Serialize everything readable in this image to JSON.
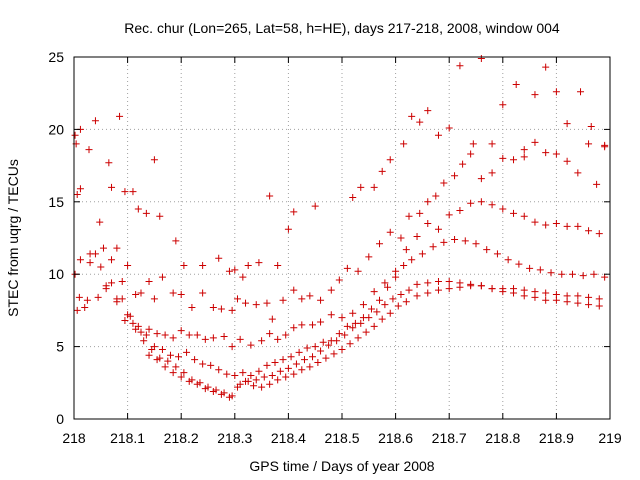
{
  "chart_data": {
    "type": "scatter",
    "title": "Rec. chur (Lon=265, Lat=58, h=HE), days 217-218, 2008, window 004",
    "xlabel": "GPS time / Days of year 2008",
    "ylabel": "STEC from uqrg / TECUs",
    "xlim": [
      218,
      219
    ],
    "ylim": [
      0,
      25
    ],
    "x_ticks": [
      "218",
      "218.1",
      "218.2",
      "218.3",
      "218.4",
      "218.5",
      "218.6",
      "218.7",
      "218.8",
      "218.9",
      "219"
    ],
    "y_ticks": [
      "0",
      "5",
      "10",
      "15",
      "20",
      "25"
    ],
    "grid": true,
    "marker": "plus",
    "color": "#cc0000",
    "points_x": [
      218.002,
      218.004,
      218.006,
      218.012,
      218.012,
      218.028,
      218.04,
      218.048,
      218.065,
      218.07,
      218.085,
      218.095,
      218.11,
      218.12,
      218.135,
      218.15,
      218.16,
      218.19,
      218.205,
      218.24,
      218.27,
      218.29,
      218.3,
      218.315,
      218.325,
      218.345,
      218.365,
      218.38,
      218.4,
      218.41,
      218.45,
      218.52,
      218.535,
      218.56,
      218.575,
      218.59,
      218.615,
      218.63,
      218.645,
      218.66,
      218.68,
      218.7,
      218.72,
      218.745,
      218.76,
      218.78,
      218.8,
      218.825,
      218.84,
      218.86,
      218.88,
      218.9,
      218.92,
      218.945,
      218.965,
      218.99,
      218.002,
      218.006,
      218.012,
      218.02,
      218.03,
      218.04,
      218.055,
      218.07,
      218.08,
      218.09,
      218.1,
      218.115,
      218.125,
      218.14,
      218.15,
      218.165,
      218.185,
      218.2,
      218.22,
      218.24,
      218.26,
      218.275,
      218.295,
      218.305,
      218.32,
      218.34,
      218.36,
      218.37,
      218.39,
      218.41,
      218.425,
      218.44,
      218.46,
      218.48,
      218.495,
      218.51,
      218.53,
      218.55,
      218.57,
      218.59,
      218.61,
      218.625,
      218.645,
      218.66,
      218.675,
      218.69,
      218.71,
      218.725,
      218.74,
      218.76,
      218.78,
      218.8,
      218.82,
      218.84,
      218.86,
      218.88,
      218.9,
      218.92,
      218.94,
      218.96,
      218.975,
      218.99,
      218.01,
      218.025,
      218.045,
      218.06,
      218.08,
      218.095,
      218.11,
      218.125,
      218.14,
      218.155,
      218.17,
      218.185,
      218.2,
      218.215,
      218.23,
      218.245,
      218.26,
      218.28,
      218.295,
      218.31,
      218.33,
      218.35,
      218.365,
      218.38,
      218.395,
      218.41,
      218.425,
      218.445,
      218.46,
      218.48,
      218.5,
      218.52,
      218.54,
      218.56,
      218.58,
      218.6,
      218.62,
      218.64,
      218.66,
      218.68,
      218.7,
      218.72,
      218.74,
      218.76,
      218.78,
      218.8,
      218.82,
      218.84,
      218.86,
      218.88,
      218.9,
      218.92,
      218.94,
      218.96,
      218.98,
      218.03,
      218.05,
      218.07,
      218.09,
      218.105,
      218.12,
      218.135,
      218.15,
      218.165,
      218.18,
      218.195,
      218.21,
      218.225,
      218.24,
      218.255,
      218.27,
      218.285,
      218.3,
      218.315,
      218.33,
      218.345,
      218.36,
      218.375,
      218.39,
      218.405,
      218.42,
      218.435,
      218.45,
      218.465,
      218.48,
      218.495,
      218.51,
      218.525,
      218.54,
      218.555,
      218.57,
      218.585,
      218.6,
      218.615,
      218.63,
      218.65,
      218.67,
      218.69,
      218.71,
      218.73,
      218.75,
      218.77,
      218.79,
      218.81,
      218.83,
      218.85,
      218.87,
      218.89,
      218.91,
      218.93,
      218.95,
      218.97,
      218.99,
      218.06,
      218.08,
      218.1,
      218.115,
      218.13,
      218.145,
      218.16,
      218.175,
      218.19,
      218.205,
      218.22,
      218.235,
      218.25,
      218.265,
      218.28,
      218.295,
      218.31,
      218.325,
      218.34,
      218.355,
      218.37,
      218.385,
      218.4,
      218.415,
      218.43,
      218.445,
      218.46,
      218.475,
      218.49,
      218.505,
      218.52,
      218.535,
      218.55,
      218.565,
      218.58,
      218.595,
      218.61,
      218.625,
      218.64,
      218.66,
      218.68,
      218.7,
      218.72,
      218.74,
      218.76,
      218.78,
      218.8,
      218.82,
      218.84,
      218.86,
      218.88,
      218.9,
      218.92,
      218.94,
      218.96,
      218.98,
      218.14,
      218.155,
      218.17,
      218.185,
      218.2,
      218.215,
      218.23,
      218.245,
      218.26,
      218.275,
      218.29,
      218.305,
      218.32,
      218.335,
      218.35,
      218.365,
      218.38,
      218.395,
      218.41,
      218.425,
      218.44,
      218.455,
      218.47,
      218.485,
      218.5,
      218.515,
      218.53,
      218.545,
      218.56,
      218.575,
      218.59,
      218.605,
      218.62,
      218.64,
      218.66,
      218.68,
      218.7,
      218.72,
      218.74,
      218.76,
      218.78,
      218.8,
      218.82,
      218.84,
      218.86,
      218.88,
      218.9,
      218.92,
      218.94,
      218.96,
      218.98
    ],
    "points_y": [
      19.6,
      19.0,
      15.5,
      20.0,
      15.9,
      18.6,
      20.6,
      13.6,
      17.7,
      16.0,
      20.9,
      15.7,
      15.7,
      14.5,
      14.2,
      17.9,
      14.0,
      12.3,
      10.6,
      10.6,
      11.1,
      10.2,
      10.3,
      9.8,
      10.6,
      10.8,
      15.4,
      10.6,
      13.1,
      14.3,
      14.7,
      15.3,
      16.0,
      16.0,
      17.1,
      17.9,
      19.0,
      20.9,
      20.5,
      21.3,
      19.6,
      20.1,
      24.4,
      19.0,
      24.9,
      19.0,
      21.7,
      23.1,
      18.1,
      22.4,
      24.3,
      22.6,
      20.4,
      22.6,
      20.2,
      18.9,
      10.0,
      7.5,
      11.0,
      7.7,
      11.4,
      11.4,
      11.8,
      11.0,
      11.8,
      9.5,
      10.6,
      8.6,
      8.7,
      9.5,
      8.3,
      9.8,
      8.7,
      8.6,
      7.7,
      8.7,
      7.7,
      7.6,
      7.5,
      8.3,
      8.0,
      7.9,
      8.0,
      6.9,
      8.2,
      8.9,
      8.3,
      8.5,
      8.2,
      8.9,
      9.6,
      10.4,
      10.2,
      11.2,
      12.1,
      12.9,
      12.5,
      14.0,
      14.2,
      15.0,
      15.4,
      16.3,
      16.8,
      17.6,
      18.3,
      16.6,
      17.0,
      18.0,
      17.9,
      18.6,
      19.1,
      18.4,
      18.3,
      17.8,
      17.0,
      19.0,
      16.2,
      18.8,
      8.4,
      8.2,
      8.4,
      9.0,
      8.1,
      6.8,
      6.6,
      6.0,
      6.2,
      5.9,
      5.8,
      5.6,
      6.1,
      5.8,
      5.8,
      5.5,
      5.6,
      5.7,
      5.0,
      5.5,
      5.1,
      5.4,
      5.9,
      5.5,
      5.8,
      6.3,
      6.5,
      6.5,
      6.7,
      7.2,
      7.0,
      7.3,
      7.9,
      8.8,
      9.4,
      10.2,
      11.7,
      12.6,
      13.5,
      13.1,
      14.1,
      14.4,
      14.9,
      15.0,
      14.8,
      14.5,
      14.2,
      14.0,
      13.6,
      13.4,
      13.5,
      13.3,
      13.3,
      13.0,
      12.8,
      10.8,
      10.5,
      9.4,
      8.3,
      7.1,
      6.4,
      5.8,
      5.0,
      4.8,
      4.4,
      4.3,
      4.6,
      4.1,
      3.8,
      3.7,
      3.4,
      3.1,
      3.0,
      3.2,
      3.0,
      3.3,
      3.7,
      3.9,
      4.1,
      4.3,
      4.6,
      4.9,
      5.0,
      5.3,
      5.4,
      5.9,
      6.4,
      6.6,
      7.0,
      7.6,
      8.2,
      9.1,
      9.8,
      10.6,
      11.0,
      11.4,
      11.9,
      12.2,
      12.4,
      12.3,
      12.1,
      11.7,
      11.4,
      11.0,
      10.7,
      10.4,
      10.3,
      10.1,
      10.0,
      10.0,
      9.9,
      10.0,
      9.8,
      9.2,
      8.3,
      7.2,
      6.2,
      5.4,
      4.8,
      4.2,
      4.0,
      3.6,
      3.2,
      2.7,
      2.5,
      2.2,
      2.0,
      1.8,
      1.6,
      2.4,
      2.6,
      2.7,
      2.9,
      3.0,
      3.3,
      3.5,
      3.8,
      4.1,
      4.3,
      4.7,
      5.1,
      5.4,
      5.8,
      6.3,
      6.6,
      7.0,
      7.4,
      7.9,
      8.3,
      8.6,
      8.9,
      9.3,
      9.4,
      9.5,
      9.5,
      9.4,
      9.3,
      9.2,
      9.0,
      9.0,
      9.0,
      8.9,
      8.8,
      8.7,
      8.6,
      8.5,
      8.5,
      8.4,
      8.3,
      4.4,
      4.1,
      3.6,
      3.2,
      2.9,
      2.6,
      2.4,
      2.1,
      1.9,
      1.7,
      1.5,
      2.2,
      2.6,
      2.3,
      2.2,
      2.4,
      2.7,
      2.9,
      3.1,
      3.4,
      3.6,
      3.9,
      4.2,
      4.5,
      4.8,
      5.2,
      5.6,
      6.0,
      6.4,
      6.9,
      7.3,
      7.8,
      8.1,
      8.5,
      8.7,
      8.9,
      9.0,
      9.1,
      9.2,
      9.2,
      9.0,
      8.8,
      8.7,
      8.5,
      8.4,
      8.2,
      8.2,
      8.1,
      8.0,
      7.9,
      7.8
    ]
  }
}
